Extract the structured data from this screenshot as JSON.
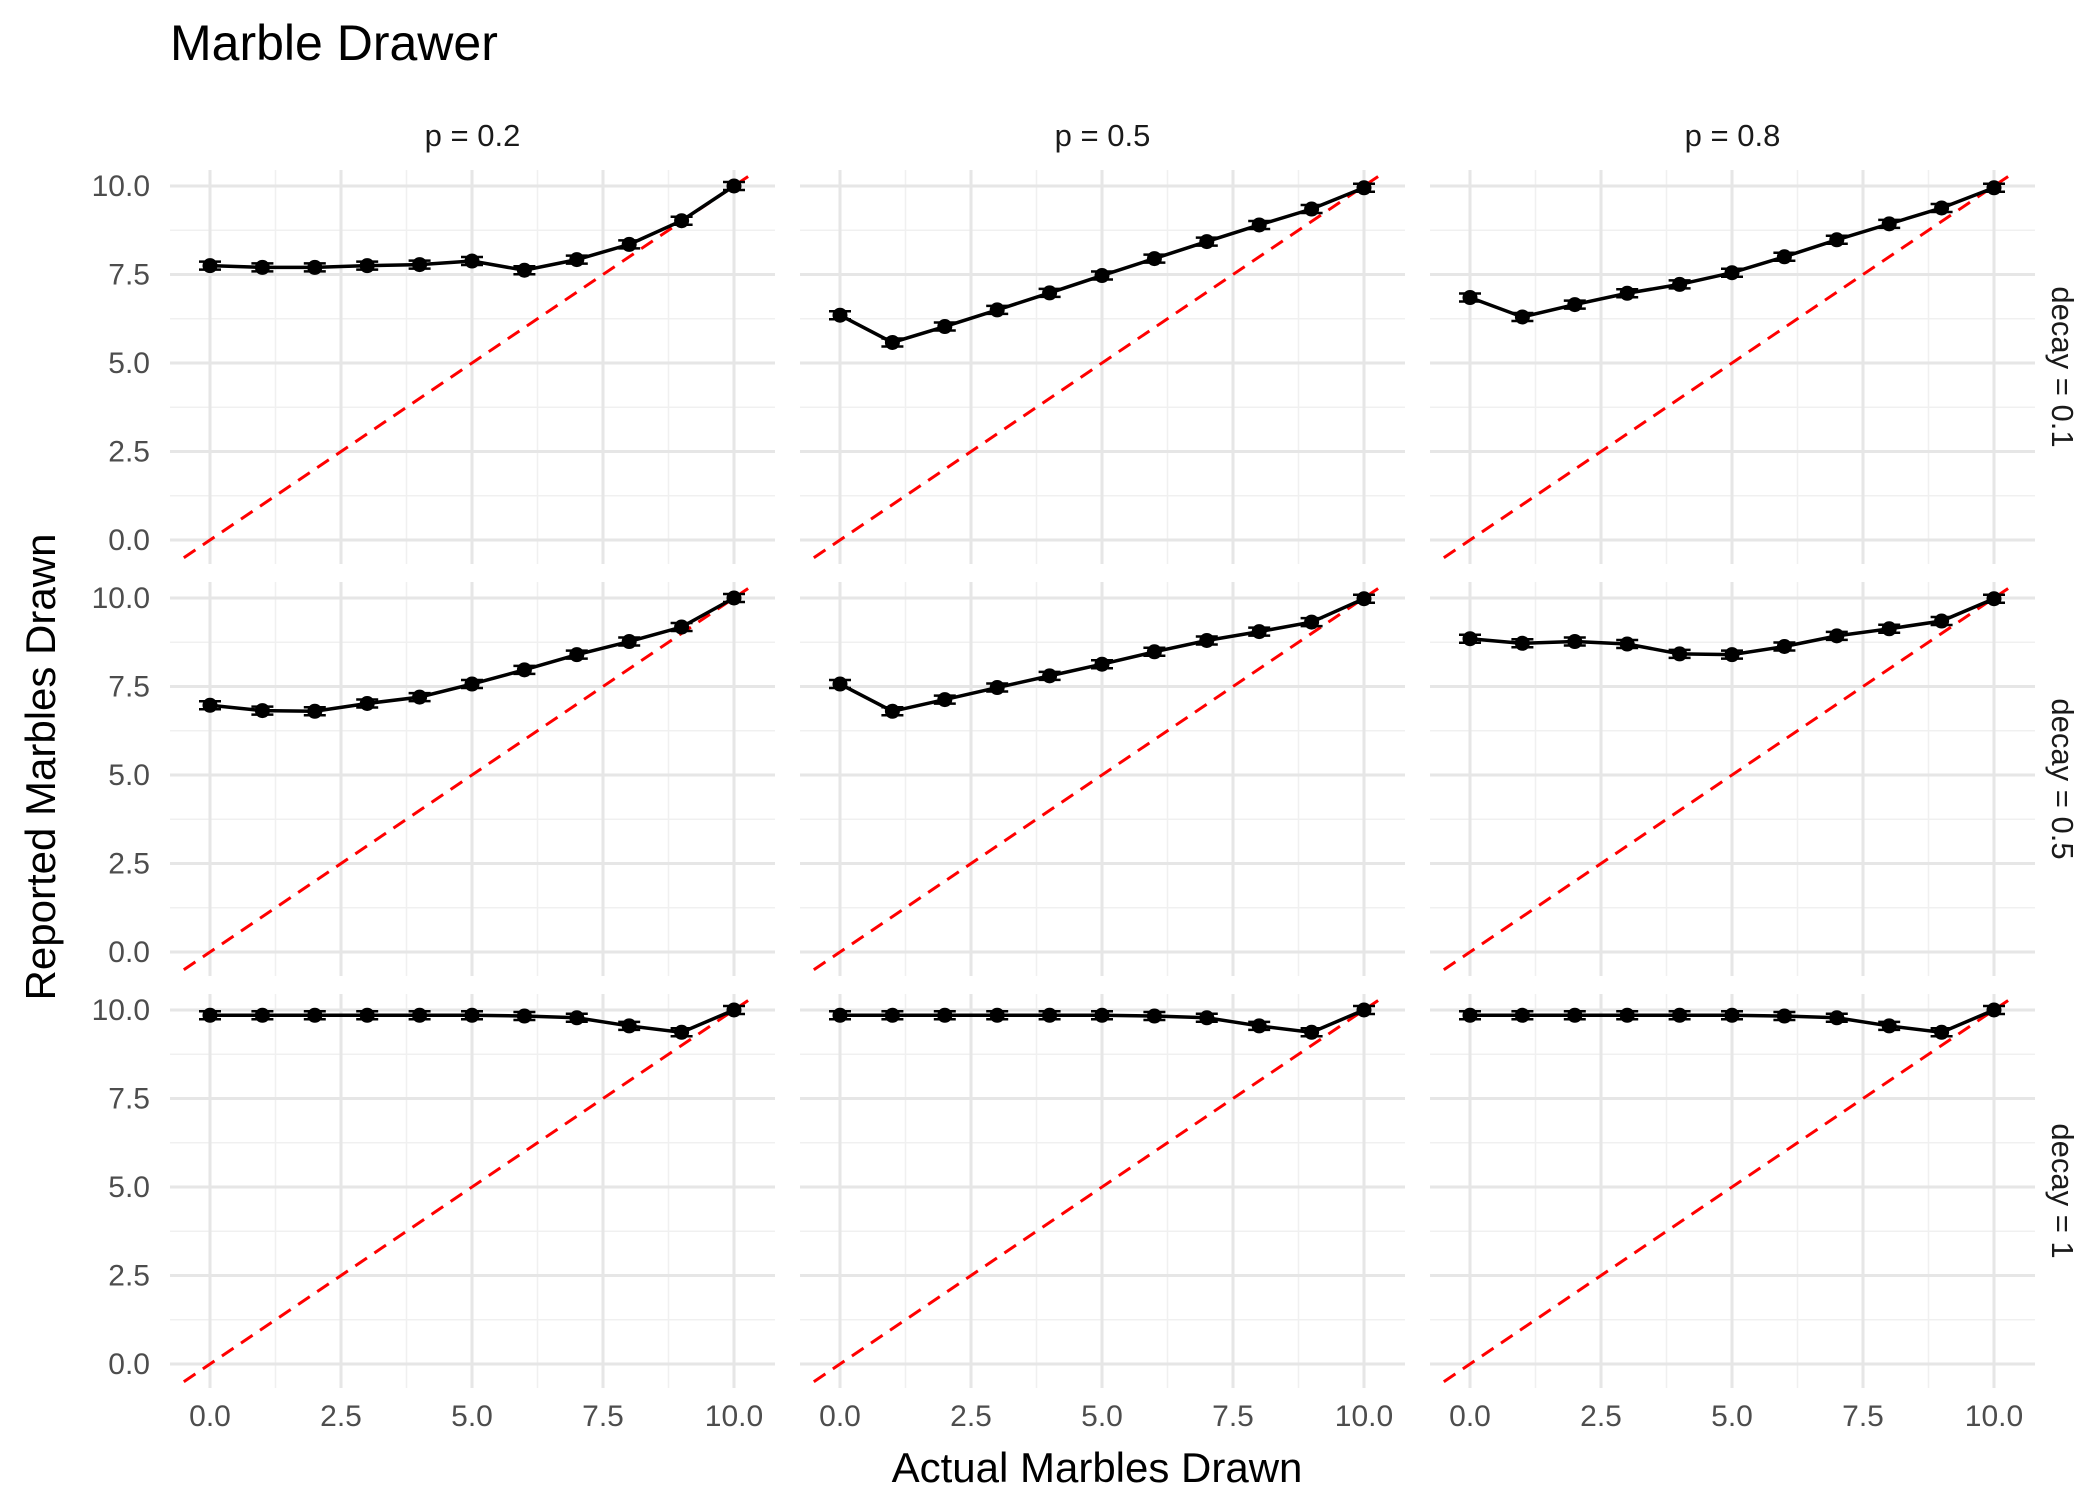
{
  "chart_data": {
    "type": "line",
    "title": "Marble Drawer",
    "xlabel": "Actual Marbles Drawn",
    "ylabel": "Reported Marbles Drawn",
    "facet_columns": [
      "p = 0.2",
      "p = 0.5",
      "p = 0.8"
    ],
    "facet_rows": [
      "decay = 0.1",
      "decay = 0.5",
      "decay = 1"
    ],
    "xlim": [
      0,
      10
    ],
    "ylim": [
      0,
      10
    ],
    "x_ticks": [
      "0.0",
      "2.5",
      "5.0",
      "7.5",
      "10.0"
    ],
    "y_ticks": [
      "0.0",
      "2.5",
      "5.0",
      "7.5",
      "10.0"
    ],
    "grid": true,
    "x": [
      0,
      1,
      2,
      3,
      4,
      5,
      6,
      7,
      8,
      9,
      10
    ],
    "reference_line": {
      "style": "dashed",
      "color": "#ff0000",
      "slope": 1,
      "intercept": 0
    },
    "line_color": "#000000",
    "panels": [
      {
        "row": "decay = 0.1",
        "col": "p = 0.2",
        "y": [
          7.75,
          7.7,
          7.7,
          7.75,
          7.78,
          7.88,
          7.62,
          7.92,
          8.35,
          9.02,
          10.0
        ]
      },
      {
        "row": "decay = 0.1",
        "col": "p = 0.5",
        "y": [
          6.35,
          5.58,
          6.03,
          6.5,
          6.98,
          7.47,
          7.95,
          8.43,
          8.9,
          9.35,
          9.95
        ]
      },
      {
        "row": "decay = 0.1",
        "col": "p = 0.8",
        "y": [
          6.85,
          6.3,
          6.65,
          6.97,
          7.22,
          7.55,
          8.0,
          8.48,
          8.93,
          9.38,
          9.95
        ]
      },
      {
        "row": "decay = 0.5",
        "col": "p = 0.2",
        "y": [
          6.97,
          6.82,
          6.8,
          7.02,
          7.2,
          7.57,
          7.97,
          8.4,
          8.77,
          9.18,
          10.0
        ]
      },
      {
        "row": "decay = 0.5",
        "col": "p = 0.5",
        "y": [
          7.57,
          6.8,
          7.13,
          7.47,
          7.8,
          8.13,
          8.48,
          8.8,
          9.05,
          9.32,
          9.98
        ]
      },
      {
        "row": "decay = 0.5",
        "col": "p = 0.8",
        "y": [
          8.85,
          8.72,
          8.77,
          8.7,
          8.42,
          8.4,
          8.63,
          8.93,
          9.13,
          9.35,
          9.98
        ]
      },
      {
        "row": "decay = 1",
        "col": "p = 0.2",
        "y": [
          9.85,
          9.85,
          9.85,
          9.85,
          9.85,
          9.85,
          9.83,
          9.78,
          9.55,
          9.37,
          10.0
        ]
      },
      {
        "row": "decay = 1",
        "col": "p = 0.5",
        "y": [
          9.85,
          9.85,
          9.85,
          9.85,
          9.85,
          9.85,
          9.83,
          9.78,
          9.55,
          9.37,
          10.0
        ]
      },
      {
        "row": "decay = 1",
        "col": "p = 0.8",
        "y": [
          9.85,
          9.85,
          9.85,
          9.85,
          9.85,
          9.85,
          9.83,
          9.78,
          9.55,
          9.37,
          10.0
        ]
      }
    ]
  }
}
